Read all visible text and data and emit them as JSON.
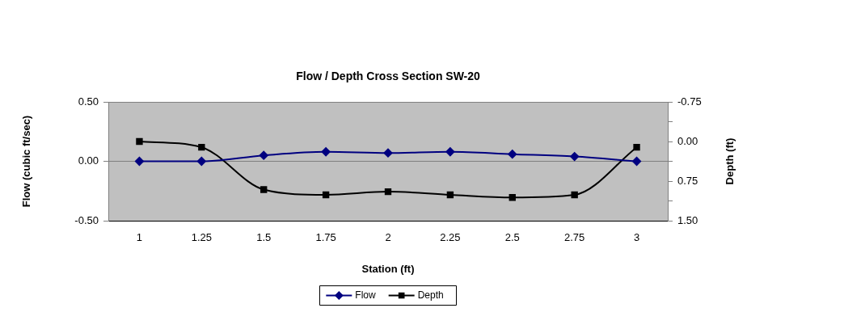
{
  "chart_data": {
    "type": "line",
    "title": "Flow / Depth Cross Section SW-20",
    "xlabel": "Station (ft)",
    "ylabel": "Flow (cubic ft/sec)",
    "y2label": "Depth (ft)",
    "categories": [
      "1",
      "1.25",
      "1.5",
      "1.75",
      "2",
      "2.25",
      "2.5",
      "2.75",
      "3"
    ],
    "series": [
      {
        "name": "Flow",
        "color": "#000080",
        "marker": "diamond",
        "values": [
          0,
          0,
          0.05,
          0.08,
          0.07,
          0.08,
          0.06,
          0.04,
          0
        ]
      },
      {
        "name": "Depth",
        "color": "#000000",
        "marker": "square",
        "axis": "y2",
        "values": [
          0,
          0.11,
          0.91,
          1.01,
          0.95,
          1.01,
          1.06,
          1.01,
          0.11
        ]
      }
    ],
    "ylim": [
      -0.5,
      0.5
    ],
    "yticks": [
      {
        "value": -0.5,
        "label": "-0.50"
      },
      {
        "value": 0,
        "label": "0.00"
      },
      {
        "value": 0.5,
        "label": "0.50"
      }
    ],
    "y2lim": [
      1.5,
      -0.75
    ],
    "y2ticks": [
      {
        "value": -0.75,
        "label": "-0.75"
      },
      {
        "value": -0.375,
        "label": null
      },
      {
        "value": 0,
        "label": "0.00"
      },
      {
        "value": 0.375,
        "label": null
      },
      {
        "value": 0.75,
        "label": "0.75"
      },
      {
        "value": 1.125,
        "label": null
      },
      {
        "value": 1.5,
        "label": "1.50"
      }
    ],
    "grid": "y",
    "legend": "bottom",
    "line_style": "solid"
  }
}
